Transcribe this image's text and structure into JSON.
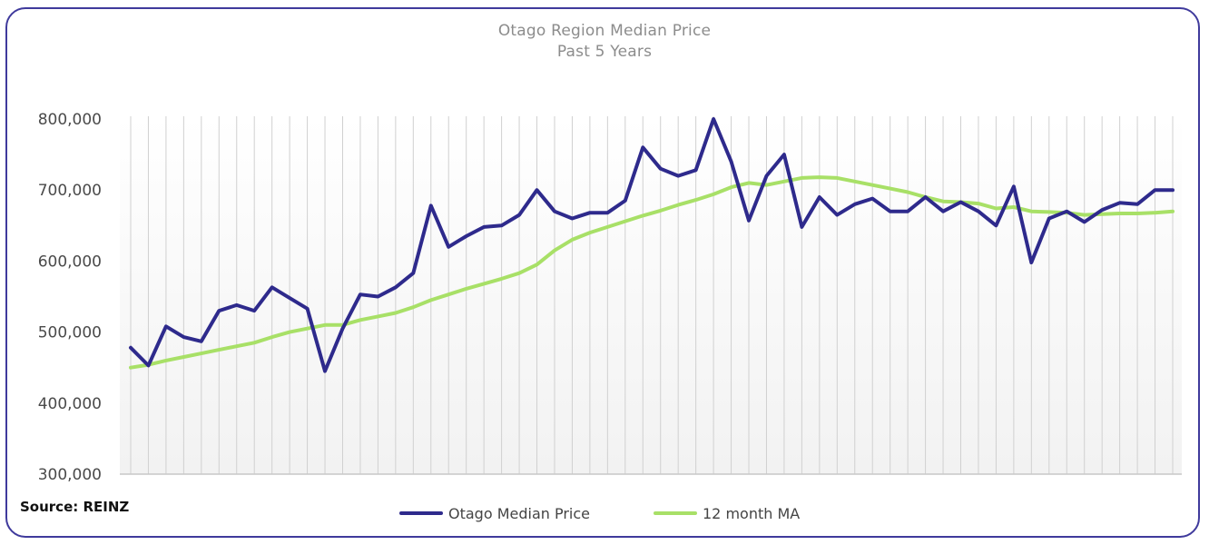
{
  "chart_data": {
    "type": "line",
    "title": "Otago Region Median Price",
    "subtitle": "Past 5 Years",
    "xlabel": "",
    "ylabel": "",
    "ylim": [
      300000,
      800000
    ],
    "yticks": [
      300000,
      400000,
      500000,
      600000,
      700000,
      800000
    ],
    "ytick_labels": [
      "300,000",
      "400,000",
      "500,000",
      "600,000",
      "700,000",
      "800,000"
    ],
    "grid": "vertical lines at each period",
    "legend_position": "bottom",
    "series": [
      {
        "name": "Otago Median Price",
        "color": "#2e2a8c",
        "values": [
          478000,
          453000,
          508000,
          493000,
          487000,
          530000,
          538000,
          530000,
          563000,
          548000,
          533000,
          445000,
          505000,
          553000,
          550000,
          563000,
          583000,
          678000,
          620000,
          635000,
          648000,
          650000,
          665000,
          700000,
          670000,
          660000,
          668000,
          668000,
          685000,
          760000,
          730000,
          720000,
          728000,
          800000,
          740000,
          657000,
          720000,
          750000,
          648000,
          690000,
          665000,
          680000,
          688000,
          670000,
          670000,
          690000,
          670000,
          683000,
          670000,
          650000,
          705000,
          598000,
          660000,
          670000,
          655000,
          672000,
          682000,
          680000,
          700000,
          700000
        ]
      },
      {
        "name": "12 month MA",
        "color": "#a8e067",
        "values": [
          450000,
          454000,
          460000,
          465000,
          470000,
          475000,
          480000,
          485000,
          493000,
          500000,
          505000,
          510000,
          510000,
          517000,
          522000,
          527000,
          535000,
          545000,
          553000,
          561000,
          568000,
          575000,
          583000,
          595000,
          615000,
          630000,
          640000,
          648000,
          656000,
          664000,
          671000,
          679000,
          686000,
          694000,
          704000,
          710000,
          707000,
          712000,
          717000,
          718000,
          717000,
          712000,
          707000,
          702000,
          697000,
          690000,
          684000,
          683000,
          681000,
          674000,
          676000,
          670000,
          669000,
          668000,
          665000,
          666000,
          667000,
          667000,
          668000,
          670000
        ]
      }
    ]
  },
  "source_text": "Source: REINZ"
}
